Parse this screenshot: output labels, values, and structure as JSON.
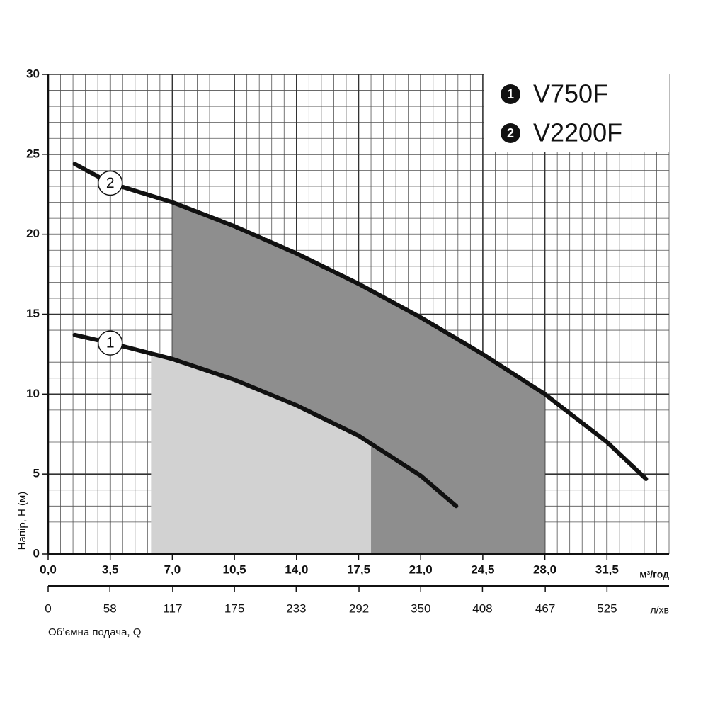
{
  "chart_data": {
    "type": "line",
    "x_label": "Об’ємна подача, Q",
    "y_label": "Напір, H (м)",
    "x_unit": "м³/год",
    "x2_unit": "л/хв",
    "xlim": [
      0,
      35
    ],
    "xticks": [
      {
        "value": 0,
        "label": "0,0"
      },
      {
        "value": 3.5,
        "label": "3,5"
      },
      {
        "value": 7,
        "label": "7,0"
      },
      {
        "value": 10.5,
        "label": "10,5"
      },
      {
        "value": 14,
        "label": "14,0"
      },
      {
        "value": 17.5,
        "label": "17,5"
      },
      {
        "value": 21,
        "label": "21,0"
      },
      {
        "value": 24.5,
        "label": "24,5"
      },
      {
        "value": 28,
        "label": "28,0"
      },
      {
        "value": 31.5,
        "label": "31,5"
      }
    ],
    "x2lim": [
      0,
      583.3
    ],
    "x2ticks": [
      0,
      58,
      117,
      175,
      233,
      292,
      350,
      408,
      467,
      525
    ],
    "ylim": [
      0,
      30
    ],
    "yticks": [
      0,
      5,
      10,
      15,
      20,
      25,
      30
    ],
    "grid": true,
    "legend": "top-right",
    "series": [
      {
        "name": "V750F",
        "marker": "1",
        "color": "#111111",
        "shade": "#d2d2d2",
        "range": [
          5.8,
          18.2
        ],
        "x": [
          1.5,
          3.5,
          7,
          10.5,
          14,
          17.5,
          21,
          23
        ],
        "values": [
          13.7,
          13.2,
          12.2,
          10.9,
          9.3,
          7.4,
          4.9,
          3.0
        ]
      },
      {
        "name": "V2200F",
        "marker": "2",
        "color": "#111111",
        "shade": "#8e8e8e",
        "range": [
          7,
          28
        ],
        "x": [
          1.5,
          3.5,
          7,
          10.5,
          14,
          17.5,
          21,
          24.5,
          28,
          31.5,
          33.7
        ],
        "values": [
          24.4,
          23.2,
          22.0,
          20.5,
          18.8,
          16.9,
          14.8,
          12.5,
          10.0,
          7.0,
          4.7
        ]
      }
    ]
  }
}
